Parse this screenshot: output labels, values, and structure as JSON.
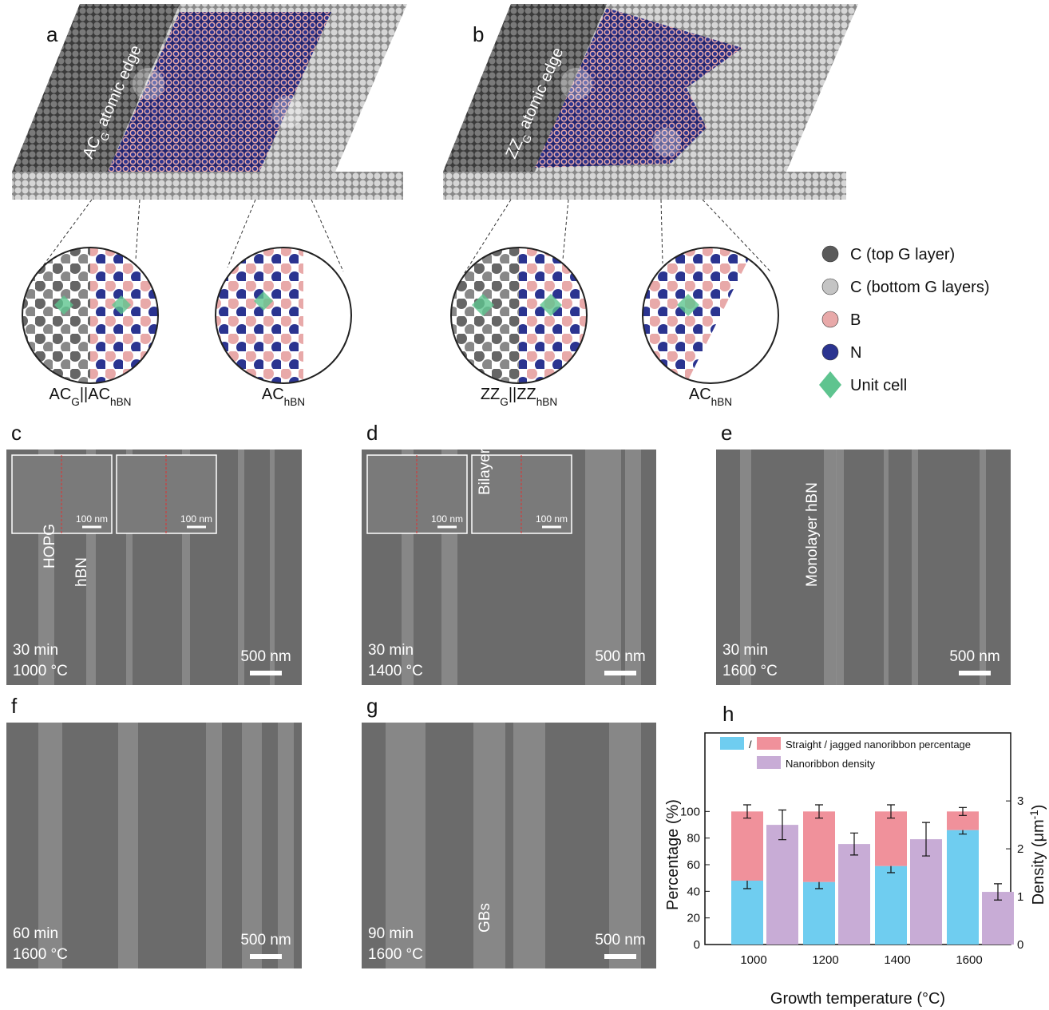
{
  "panel_a": {
    "label": "a",
    "edge_label": [
      "AC",
      "G",
      " atomic edge"
    ],
    "zoom_labels": [
      [
        "AC",
        "G",
        "||AC",
        "hBN"
      ],
      [
        "AC",
        "hBN"
      ]
    ]
  },
  "panel_b": {
    "label": "b",
    "edge_label": [
      "ZZ",
      "G",
      " atomic edge"
    ],
    "zoom_labels": [
      [
        "ZZ",
        "G",
        "||ZZ",
        "hBN"
      ],
      [
        "AC",
        "hBN"
      ]
    ]
  },
  "atom_legend": [
    {
      "label": "C (top G layer)",
      "color": "#5a5a5a"
    },
    {
      "label": "C (bottom G layers)",
      "color": "#c4c4c4"
    },
    {
      "label": "B",
      "color": "#e8a9a9"
    },
    {
      "label": "N",
      "color": "#2b3490"
    },
    {
      "label": "Unit cell",
      "color": "#5ec48f"
    }
  ],
  "sem_panels": [
    {
      "label": "c",
      "time": "30 min",
      "temperature": "1000 °C",
      "scale_bar": "500 nm",
      "inset_scale_bars": [
        "100 nm",
        "100 nm"
      ],
      "annotations": [
        "HOPG",
        "hBN"
      ]
    },
    {
      "label": "d",
      "time": "30 min",
      "temperature": "1400 °C",
      "scale_bar": "500 nm",
      "inset_scale_bars": [
        "100 nm",
        "100 nm"
      ]
    },
    {
      "label": "e",
      "time": "30 min",
      "temperature": "1600 °C",
      "scale_bar": "500 nm",
      "annotations": [
        "Monolayer hBN"
      ]
    },
    {
      "label": "f",
      "time": "60 min",
      "temperature": "1600 °C",
      "scale_bar": "500 nm"
    },
    {
      "label": "g",
      "time": "90 min",
      "temperature": "1600 °C",
      "scale_bar": "500 nm",
      "annotations": [
        "Bilayer",
        "GBs"
      ]
    }
  ],
  "chart_data": {
    "type": "bar",
    "panel_label": "h",
    "categories": [
      "1000",
      "1200",
      "1400",
      "1600"
    ],
    "x_label": "Growth temperature (°C)",
    "y_label": "Percentage (%)",
    "y2_label": [
      "Density (μm",
      "-1",
      ")"
    ],
    "ylim": [
      0,
      159
    ],
    "yticks": [
      0,
      20,
      40,
      60,
      80,
      100
    ],
    "y2lim": [
      0,
      4.42
    ],
    "y2ticks": [
      0,
      1,
      2,
      3
    ],
    "legend_separator": "/",
    "series": [
      {
        "color": "#6fcdf0",
        "values": [
          48,
          47,
          59,
          86
        ],
        "errors": [
          6,
          5,
          5,
          3
        ]
      },
      {
        "name": "Straight / jagged nanoribbon percentage",
        "color": "#f0919b",
        "values": [
          52,
          53,
          41,
          14
        ],
        "errors": [
          5,
          5,
          5,
          3
        ]
      },
      {
        "name": "Nanoribbon density",
        "color": "#c8acd6",
        "axis": "y2",
        "values": [
          2.5,
          2.1,
          2.2,
          1.1
        ],
        "errors": [
          0.31,
          0.23,
          0.35,
          0.17
        ]
      }
    ]
  }
}
